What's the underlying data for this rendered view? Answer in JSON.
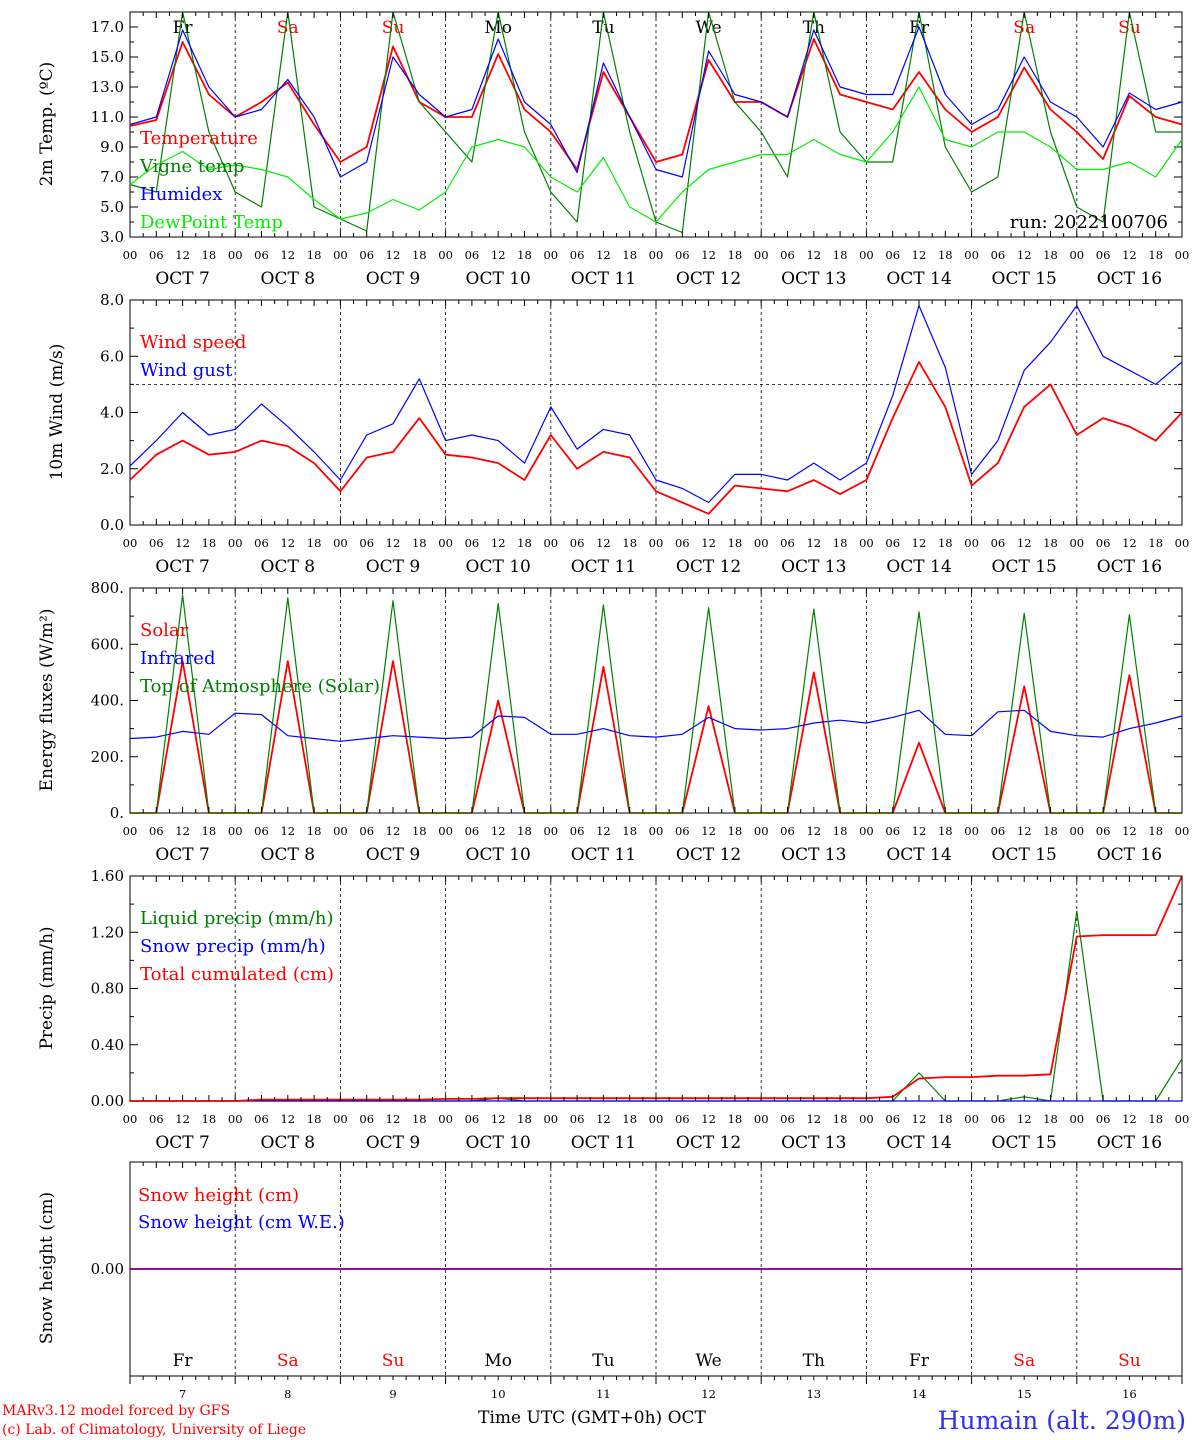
{
  "run_label": "run: 2022100706",
  "hour_labels": [
    "00",
    "06",
    "12",
    "18"
  ],
  "hour_end_label": "00",
  "days": [
    {
      "name": "Fr",
      "num": "7",
      "date": "OCT  7",
      "weekend": false
    },
    {
      "name": "Sa",
      "num": "8",
      "date": "OCT  8",
      "weekend": true
    },
    {
      "name": "Su",
      "num": "9",
      "date": "OCT  9",
      "weekend": true
    },
    {
      "name": "Mo",
      "num": "10",
      "date": "OCT 10",
      "weekend": false
    },
    {
      "name": "Tu",
      "num": "11",
      "date": "OCT 11",
      "weekend": false
    },
    {
      "name": "We",
      "num": "12",
      "date": "OCT 12",
      "weekend": false
    },
    {
      "name": "Th",
      "num": "13",
      "date": "OCT 13",
      "weekend": false
    },
    {
      "name": "Fr",
      "num": "14",
      "date": "OCT 14",
      "weekend": false
    },
    {
      "name": "Sa",
      "num": "15",
      "date": "OCT 15",
      "weekend": true
    },
    {
      "name": "Su",
      "num": "16",
      "date": "OCT 16",
      "weekend": true
    }
  ],
  "footer": {
    "model": "MARv3.12 model forced by GFS",
    "lab": "(c) Lab. of Climatology, University of Liege",
    "xlabel": "Time UTC (GMT+0h) OCT",
    "station": "Humain (alt. 290m)"
  },
  "colors": {
    "red": "#ff0000",
    "green": "#008000",
    "blue": "#0000ff",
    "lightgreen": "#00ee00",
    "purple": "#800080",
    "station": "#3030ee"
  },
  "chart_data": [
    {
      "type": "line",
      "ylabel": "2m Temp. (ºC)",
      "ylim": [
        3.0,
        18.0
      ],
      "yticks": [
        "3.0",
        "5.0",
        "7.0",
        "9.0",
        "11.0",
        "13.0",
        "15.0",
        "17.0"
      ],
      "x": [
        "10-07 00",
        "10-07 06",
        "10-07 12",
        "10-07 18",
        "10-08 00",
        "10-08 06",
        "10-08 12",
        "10-08 18",
        "10-09 00",
        "10-09 06",
        "10-09 12",
        "10-09 18",
        "10-10 00",
        "10-10 06",
        "10-10 12",
        "10-10 18",
        "10-11 00",
        "10-11 06",
        "10-11 12",
        "10-11 18",
        "10-12 00",
        "10-12 06",
        "10-12 12",
        "10-12 18",
        "10-13 00",
        "10-13 06",
        "10-13 12",
        "10-13 18",
        "10-14 00",
        "10-14 06",
        "10-14 12",
        "10-14 18",
        "10-15 00",
        "10-15 06",
        "10-15 12",
        "10-15 18",
        "10-16 00",
        "10-16 06",
        "10-16 12",
        "10-16 18",
        "10-17 00"
      ],
      "series": [
        {
          "name": "Temperature",
          "color": "#ff0000",
          "values": [
            10.4,
            10.8,
            16.0,
            12.5,
            11.0,
            12.0,
            13.3,
            10.5,
            8.0,
            9.0,
            15.7,
            12.0,
            11.0,
            11.0,
            15.2,
            11.5,
            10.0,
            7.5,
            14.0,
            11.0,
            8.0,
            8.5,
            14.8,
            12.0,
            12.0,
            11.0,
            16.2,
            12.5,
            12.0,
            11.5,
            14.0,
            11.5,
            10.0,
            11.0,
            14.3,
            11.5,
            10.0,
            8.2,
            12.4,
            11.0,
            10.5
          ]
        },
        {
          "name": "Vigne temp",
          "color": "#008000",
          "values": [
            6.5,
            6.0,
            18.0,
            10.0,
            6.0,
            5.0,
            18.0,
            5.0,
            4.2,
            3.4,
            18.0,
            12.0,
            10.0,
            8.0,
            18.0,
            10.0,
            6.0,
            4.0,
            18.0,
            10.0,
            4.0,
            3.3,
            18.0,
            12.0,
            10.0,
            7.0,
            18.0,
            10.0,
            8.0,
            8.0,
            18.0,
            9.0,
            6.0,
            7.0,
            18.0,
            10.0,
            5.0,
            4.0,
            18.0,
            10.0,
            10.0
          ]
        },
        {
          "name": "Humidex",
          "color": "#0000ff",
          "values": [
            10.5,
            11.0,
            16.8,
            13.0,
            11.0,
            11.5,
            13.5,
            11.0,
            7.0,
            8.0,
            15.0,
            12.5,
            11.0,
            11.5,
            16.2,
            12.0,
            10.5,
            7.3,
            14.6,
            11.0,
            7.5,
            7.0,
            15.4,
            12.5,
            12.0,
            11.0,
            16.8,
            13.0,
            12.5,
            12.5,
            17.0,
            12.5,
            10.5,
            11.5,
            15.0,
            12.0,
            11.0,
            9.0,
            12.6,
            11.5,
            12.0
          ]
        },
        {
          "name": "DewPoint Temp",
          "color": "#00ee00",
          "values": [
            6.5,
            7.8,
            8.7,
            7.5,
            7.8,
            7.5,
            7.0,
            5.5,
            4.2,
            4.6,
            5.5,
            4.8,
            6.0,
            9.0,
            9.5,
            9.0,
            7.0,
            6.0,
            8.3,
            5.0,
            4.0,
            6.0,
            7.5,
            8.0,
            8.5,
            8.5,
            9.5,
            8.5,
            8.0,
            10.0,
            13.0,
            9.5,
            9.0,
            10.0,
            10.0,
            9.0,
            7.5,
            7.5,
            8.0,
            7.0,
            9.5
          ]
        }
      ]
    },
    {
      "type": "line",
      "ylabel": "10m Wind (m/s)",
      "ylim": [
        0.0,
        8.0
      ],
      "yticks": [
        "0.0",
        "2.0",
        "4.0",
        "6.0",
        "8.0"
      ],
      "threshold": 5.0,
      "series": [
        {
          "name": "Wind speed",
          "color": "#ff0000",
          "values": [
            1.6,
            2.5,
            3.0,
            2.5,
            2.6,
            3.0,
            2.8,
            2.2,
            1.2,
            2.4,
            2.6,
            3.8,
            2.5,
            2.4,
            2.2,
            1.6,
            3.2,
            2.0,
            2.6,
            2.4,
            1.2,
            0.8,
            0.4,
            1.4,
            1.3,
            1.2,
            1.6,
            1.1,
            1.6,
            3.8,
            5.8,
            4.2,
            1.4,
            2.2,
            4.2,
            5.0,
            3.2,
            3.8,
            3.5,
            3.0,
            4.0
          ]
        },
        {
          "name": "Wind gust",
          "color": "#0000ff",
          "values": [
            2.1,
            3.0,
            4.0,
            3.2,
            3.4,
            4.3,
            3.5,
            2.6,
            1.6,
            3.2,
            3.6,
            5.2,
            3.0,
            3.2,
            3.0,
            2.2,
            4.2,
            2.7,
            3.4,
            3.2,
            1.6,
            1.3,
            0.8,
            1.8,
            1.8,
            1.6,
            2.2,
            1.6,
            2.2,
            4.6,
            7.8,
            5.6,
            1.8,
            3.0,
            5.5,
            6.5,
            7.8,
            6.0,
            5.5,
            5.0,
            5.8
          ]
        }
      ]
    },
    {
      "type": "line",
      "ylabel": "Energy fluxes (W/m²)",
      "ylim": [
        0,
        800
      ],
      "yticks": [
        "0.",
        "200.",
        "400.",
        "600.",
        "800."
      ],
      "series": [
        {
          "name": "Solar",
          "color": "#ff0000",
          "values": [
            0,
            0,
            540,
            0,
            0,
            0,
            540,
            0,
            0,
            0,
            540,
            0,
            0,
            0,
            400,
            0,
            0,
            0,
            520,
            0,
            0,
            0,
            380,
            0,
            0,
            0,
            500,
            0,
            0,
            0,
            250,
            0,
            0,
            0,
            450,
            0,
            0,
            0,
            490,
            0,
            0
          ]
        },
        {
          "name": "Infrared",
          "color": "#0000ff",
          "values": [
            265,
            270,
            290,
            280,
            355,
            350,
            275,
            265,
            255,
            265,
            275,
            270,
            265,
            270,
            345,
            340,
            280,
            280,
            300,
            275,
            270,
            280,
            340,
            300,
            295,
            300,
            320,
            330,
            320,
            340,
            365,
            280,
            275,
            360,
            365,
            290,
            275,
            270,
            300,
            320,
            345
          ]
        },
        {
          "name": "Top of Atmosphere (Solar)",
          "color": "#008000",
          "values": [
            0,
            0,
            775,
            0,
            0,
            0,
            765,
            0,
            0,
            0,
            755,
            0,
            0,
            0,
            745,
            0,
            0,
            0,
            740,
            0,
            0,
            0,
            730,
            0,
            0,
            0,
            725,
            0,
            0,
            0,
            715,
            0,
            0,
            0,
            710,
            0,
            0,
            0,
            705,
            0,
            0
          ]
        }
      ]
    },
    {
      "type": "line",
      "ylabel": "Precip (mm/h)",
      "ylim": [
        0.0,
        1.6
      ],
      "yticks": [
        "0.00",
        "0.40",
        "0.80",
        "1.20",
        "1.60"
      ],
      "series": [
        {
          "name": "Liquid precip (mm/h)",
          "color": "#008000",
          "values": [
            0,
            0,
            0,
            0,
            0,
            0,
            0,
            0,
            0,
            0,
            0,
            0,
            0,
            0,
            0.02,
            0,
            0,
            0,
            0,
            0,
            0,
            0,
            0,
            0,
            0,
            0,
            0,
            0,
            0,
            0,
            0.2,
            0,
            0,
            0,
            0.03,
            0,
            1.35,
            0,
            0,
            0,
            0.3
          ]
        },
        {
          "name": "Snow precip (mm/h)",
          "color": "#0000ff",
          "values": [
            0,
            0,
            0,
            0,
            0,
            0,
            0,
            0,
            0,
            0,
            0,
            0,
            0,
            0,
            0,
            0,
            0,
            0,
            0,
            0,
            0,
            0,
            0,
            0,
            0,
            0,
            0,
            0,
            0,
            0,
            0,
            0,
            0,
            0,
            0,
            0,
            0,
            0,
            0,
            0,
            0
          ]
        },
        {
          "name": "Total cumulated (cm)",
          "color": "#ff0000",
          "values": [
            0,
            0,
            0,
            0,
            0,
            0.01,
            0.01,
            0.01,
            0.01,
            0.01,
            0.01,
            0.01,
            0.015,
            0.015,
            0.02,
            0.02,
            0.02,
            0.02,
            0.02,
            0.02,
            0.02,
            0.02,
            0.02,
            0.02,
            0.02,
            0.02,
            0.02,
            0.02,
            0.02,
            0.03,
            0.16,
            0.17,
            0.17,
            0.18,
            0.18,
            0.19,
            1.17,
            1.18,
            1.18,
            1.18,
            1.6
          ]
        }
      ]
    },
    {
      "type": "line",
      "ylabel": "Snow height (cm)",
      "yticks": [
        "0.00"
      ],
      "series": [
        {
          "name": "Snow height (cm)",
          "color": "#ff0000",
          "values": [
            0,
            0
          ]
        },
        {
          "name": "Snow height (cm W.E.)",
          "color": "#0000ff",
          "values": [
            0,
            0
          ]
        }
      ]
    }
  ]
}
